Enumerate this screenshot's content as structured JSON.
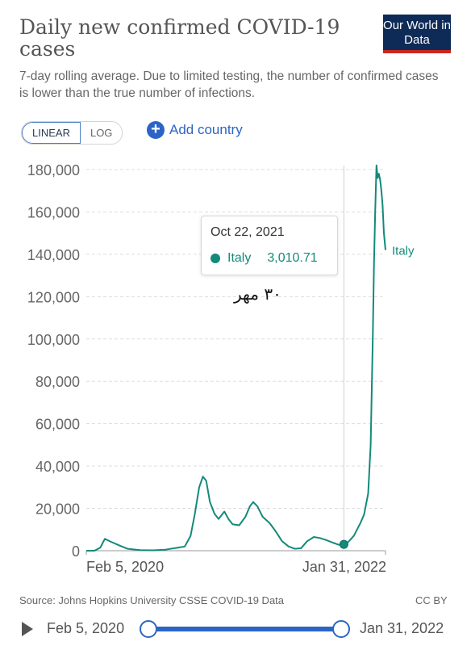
{
  "header": {
    "title": "Daily new confirmed COVID-19 cases",
    "subtitle": "7-day rolling average. Due to limited testing, the number of confirmed cases is lower than the true number of infections.",
    "logo_text": "Our World in Data"
  },
  "controls": {
    "linear_label": "LINEAR",
    "log_label": "LOG",
    "add_country_label": "Add country",
    "active_scale": "linear"
  },
  "tooltip": {
    "date": "Oct 22, 2021",
    "country": "Italy",
    "value": "3,010.71"
  },
  "annotation": "۳۰ مهر",
  "footer": {
    "source": "Source: Johns Hopkins University CSSE COVID-19 Data",
    "license": "CC BY"
  },
  "timeline": {
    "start": "Feb 5, 2020",
    "end": "Jan 31, 2022"
  },
  "colors": {
    "series": "#138a7a",
    "accent": "#2c64c6",
    "grid": "#dddddd"
  },
  "chart_data": {
    "type": "line",
    "title": "Daily new confirmed COVID-19 cases",
    "x_tick_labels": [
      "Feb 5, 2020",
      "Jan 31, 2022"
    ],
    "xlim": [
      "2020-02-05",
      "2022-01-31"
    ],
    "ylim": [
      0,
      180000
    ],
    "y_ticks": [
      0,
      20000,
      40000,
      60000,
      80000,
      100000,
      120000,
      140000,
      160000,
      180000
    ],
    "y_tick_labels": [
      "0",
      "20,000",
      "40,000",
      "60,000",
      "80,000",
      "100,000",
      "120,000",
      "140,000",
      "160,000",
      "180,000"
    ],
    "grid": true,
    "highlight": {
      "x": "2021-10-22",
      "y": 3010.71
    },
    "series": [
      {
        "name": "Italy",
        "color": "#138a7a",
        "points": [
          [
            "2020-02-05",
            0
          ],
          [
            "2020-02-25",
            0
          ],
          [
            "2020-03-10",
            1500
          ],
          [
            "2020-03-21",
            5600
          ],
          [
            "2020-04-05",
            4200
          ],
          [
            "2020-04-25",
            2500
          ],
          [
            "2020-05-15",
            900
          ],
          [
            "2020-06-15",
            300
          ],
          [
            "2020-07-15",
            200
          ],
          [
            "2020-08-15",
            500
          ],
          [
            "2020-09-15",
            1500
          ],
          [
            "2020-10-01",
            2000
          ],
          [
            "2020-10-15",
            7000
          ],
          [
            "2020-10-25",
            17000
          ],
          [
            "2020-11-05",
            30000
          ],
          [
            "2020-11-14",
            35000
          ],
          [
            "2020-11-22",
            33000
          ],
          [
            "2020-12-01",
            23000
          ],
          [
            "2020-12-12",
            17500
          ],
          [
            "2020-12-22",
            15000
          ],
          [
            "2021-01-05",
            18500
          ],
          [
            "2021-01-15",
            15000
          ],
          [
            "2021-01-25",
            12500
          ],
          [
            "2021-02-10",
            12000
          ],
          [
            "2021-02-25",
            16000
          ],
          [
            "2021-03-08",
            21000
          ],
          [
            "2021-03-16",
            23000
          ],
          [
            "2021-03-26",
            21000
          ],
          [
            "2021-04-08",
            16000
          ],
          [
            "2021-04-25",
            13000
          ],
          [
            "2021-05-10",
            9000
          ],
          [
            "2021-05-25",
            4500
          ],
          [
            "2021-06-10",
            2000
          ],
          [
            "2021-06-25",
            900
          ],
          [
            "2021-07-10",
            1200
          ],
          [
            "2021-07-25",
            4500
          ],
          [
            "2021-08-10",
            6500
          ],
          [
            "2021-08-25",
            6000
          ],
          [
            "2021-09-10",
            5000
          ],
          [
            "2021-09-25",
            3800
          ],
          [
            "2021-10-10",
            2800
          ],
          [
            "2021-10-22",
            3010.71
          ],
          [
            "2021-11-01",
            4000
          ],
          [
            "2021-11-15",
            7000
          ],
          [
            "2021-12-01",
            13000
          ],
          [
            "2021-12-10",
            17000
          ],
          [
            "2021-12-20",
            27000
          ],
          [
            "2021-12-26",
            50000
          ],
          [
            "2021-12-31",
            100000
          ],
          [
            "2022-01-03",
            135000
          ],
          [
            "2022-01-06",
            160000
          ],
          [
            "2022-01-09",
            182000
          ],
          [
            "2022-01-12",
            176000
          ],
          [
            "2022-01-15",
            178000
          ],
          [
            "2022-01-18",
            175000
          ],
          [
            "2022-01-21",
            170000
          ],
          [
            "2022-01-24",
            163000
          ],
          [
            "2022-01-27",
            150000
          ],
          [
            "2022-01-31",
            142000
          ]
        ]
      }
    ]
  }
}
